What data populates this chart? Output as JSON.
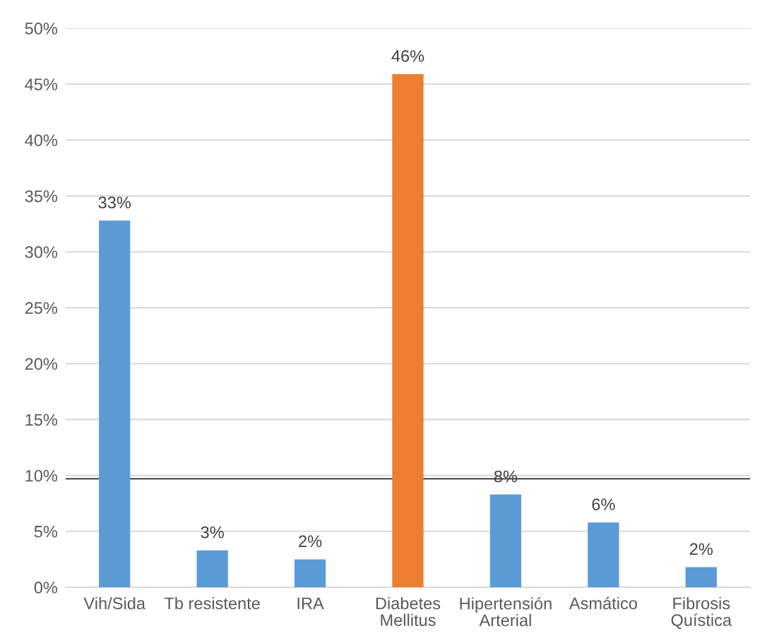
{
  "chart_data": {
    "type": "bar",
    "categories": [
      "Vih/Sida",
      "Tb resistente",
      "IRA",
      "Diabetes\nMellitus",
      "Hipertensión\nArterial",
      "Asmático",
      "Fibrosis\nQuística"
    ],
    "values": [
      32.8,
      3.3,
      2.5,
      45.9,
      8.3,
      5.8,
      1.8
    ],
    "colors": [
      "#5b9bd5",
      "#5b9bd5",
      "#5b9bd5",
      "#ed7d31",
      "#5b9bd5",
      "#5b9bd5",
      "#5b9bd5"
    ],
    "value_labels": [
      "33%",
      "3%",
      "2%",
      "46%",
      "8%",
      "6%",
      "2%"
    ],
    "ylim": [
      0,
      50
    ],
    "yticks": [
      {
        "value": 0,
        "label": "0%"
      },
      {
        "value": 5,
        "label": "5%"
      },
      {
        "value": 10,
        "label": "10%"
      },
      {
        "value": 15,
        "label": "15%"
      },
      {
        "value": 20,
        "label": "20%"
      },
      {
        "value": 25,
        "label": "25%"
      },
      {
        "value": 30,
        "label": "30%"
      },
      {
        "value": 35,
        "label": "35%"
      },
      {
        "value": 40,
        "label": "40%"
      },
      {
        "value": 45,
        "label": "45%"
      },
      {
        "value": 50,
        "label": "50%"
      }
    ],
    "ref_lines": [
      {
        "axis": "y",
        "value": 9.7,
        "color": "#262626",
        "line_style": "solid"
      }
    ],
    "grid": "y",
    "legend": false
  }
}
